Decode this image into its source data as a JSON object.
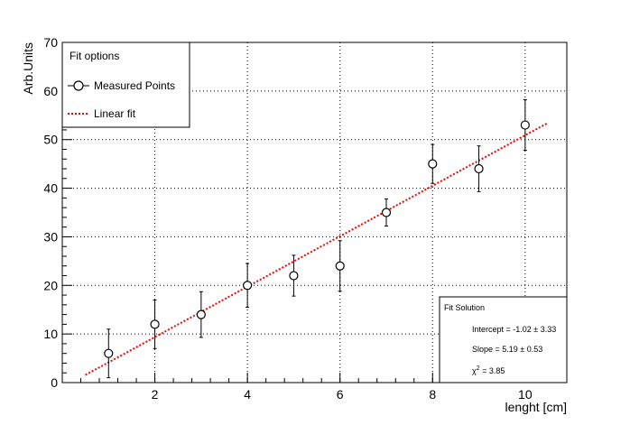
{
  "chart_data": {
    "type": "scatter",
    "title": "",
    "xlabel": "lenght [cm]",
    "ylabel": "Arb.Units",
    "xlim": [
      0.0,
      10.9
    ],
    "ylim": [
      0,
      70
    ],
    "x_ticks": [
      2,
      4,
      6,
      8,
      10
    ],
    "y_ticks": [
      0,
      10,
      20,
      30,
      40,
      50,
      60,
      70
    ],
    "grid": true,
    "legend": {
      "title": "Fit options",
      "placement": "top-left",
      "entries": [
        "Measured Points",
        "Linear fit"
      ]
    },
    "series": [
      {
        "name": "Measured Points",
        "marker": "open-circle",
        "color": "#000000",
        "x": [
          1,
          2,
          3,
          4,
          5,
          6,
          7,
          8,
          9,
          10
        ],
        "y": [
          6,
          12,
          14,
          20,
          22,
          24,
          35,
          45,
          44,
          53
        ],
        "y_err": [
          5,
          5,
          4.7,
          4.5,
          4.2,
          5.2,
          2.8,
          4,
          4.7,
          5.2
        ]
      },
      {
        "name": "Linear fit",
        "style": "dotted",
        "color": "#ff0000",
        "intercept": -1.02,
        "slope": 5.19,
        "x_range": [
          0.5,
          10.5
        ]
      }
    ],
    "stats_box": {
      "title": "Fit Solution",
      "intercept_label": "Intercept = -1.02 ± 3.33",
      "slope_label": "Slope = 5.19 ± 0.53",
      "chi2_symbol": "χ",
      "chi2_exp": "2",
      "chi2_value": " = 3.85"
    }
  }
}
